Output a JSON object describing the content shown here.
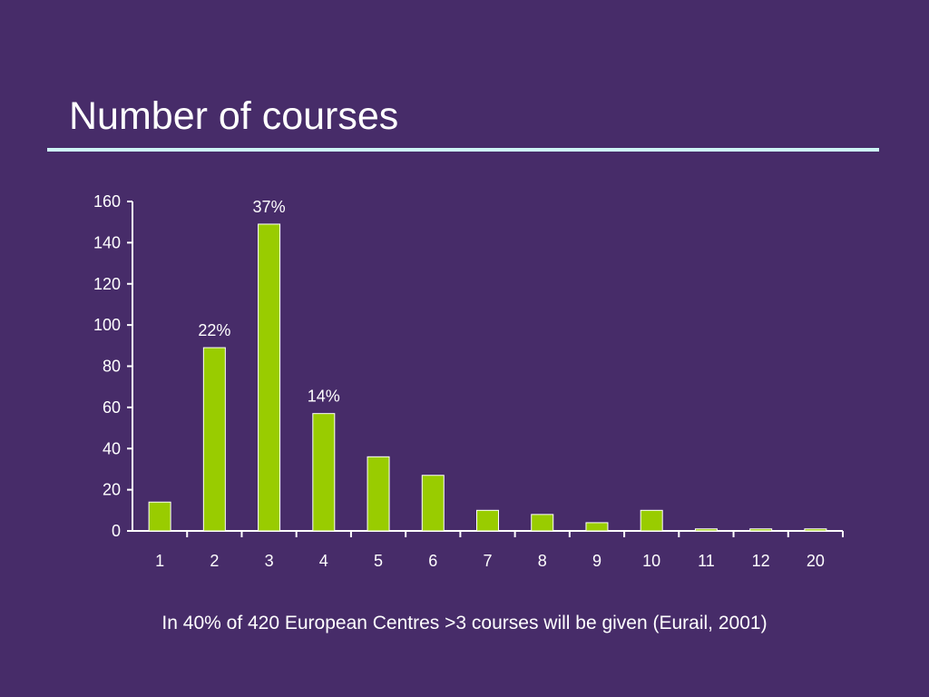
{
  "slide": {
    "title": "Number of courses",
    "footnote": "In 40% of  420 European Centres >3 courses will be given (Eurail, 2001)"
  },
  "colors": {
    "background": "#472c69",
    "bar_fill": "#99cc00",
    "bar_stroke": "#ffffff",
    "title_rule": "#cdf6f6",
    "text": "#ffffff"
  },
  "chart_data": {
    "type": "bar",
    "categories": [
      "1",
      "2",
      "3",
      "4",
      "5",
      "6",
      "7",
      "8",
      "9",
      "10",
      "11",
      "12",
      "20"
    ],
    "values": [
      14,
      89,
      149,
      57,
      36,
      27,
      10,
      8,
      4,
      10,
      1,
      1,
      1
    ],
    "data_labels": [
      "",
      "22%",
      "37%",
      "14%",
      "",
      "",
      "",
      "",
      "",
      "",
      "",
      "",
      ""
    ],
    "yticks": [
      0,
      20,
      40,
      60,
      80,
      100,
      120,
      140,
      160
    ],
    "ylim": [
      0,
      160
    ],
    "grid": false,
    "legend": "none"
  }
}
